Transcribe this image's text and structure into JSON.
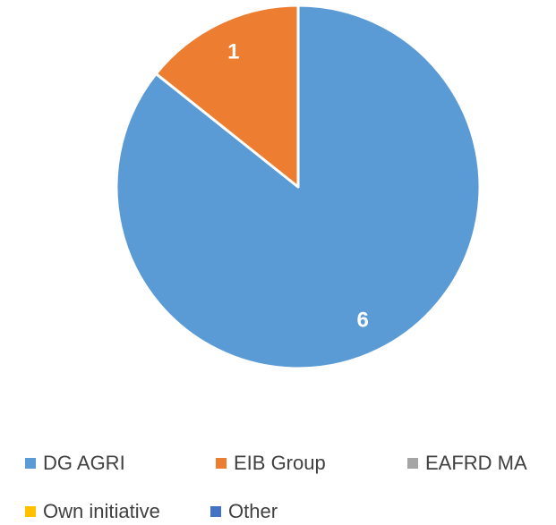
{
  "chart_data": {
    "type": "pie",
    "categories": [
      "DG AGRI",
      "EIB Group",
      "EAFRD MA",
      "Own initiative",
      "Other"
    ],
    "values": [
      6,
      1,
      0,
      0,
      0
    ],
    "colors": [
      "#5b9bd5",
      "#ed7d31",
      "#a5a5a5",
      "#ffc000",
      "#4472c4"
    ],
    "legend": "bottom"
  }
}
